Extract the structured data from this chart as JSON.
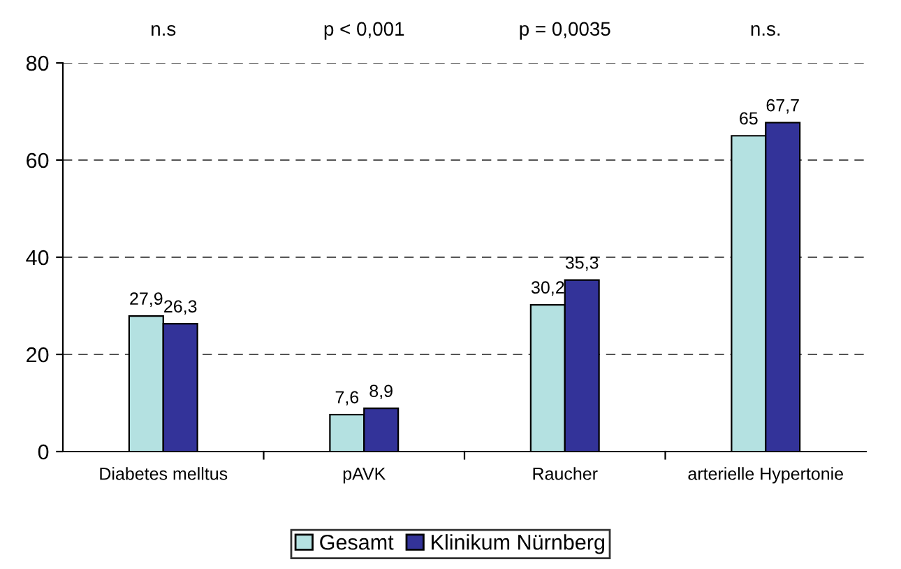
{
  "chart_data": {
    "type": "bar",
    "categories": [
      "Diabetes melltus",
      "pAVK",
      "Raucher",
      "arterielle Hypertonie"
    ],
    "series": [
      {
        "name": "Gesamt",
        "color": "#b4e1e1",
        "values": [
          27.9,
          7.6,
          30.2,
          65
        ],
        "value_labels": [
          "27,9",
          "7,6",
          "30,2",
          "65"
        ]
      },
      {
        "name": "Klinikum Nürnberg",
        "color": "#333399",
        "values": [
          26.3,
          8.9,
          35.3,
          67.7
        ],
        "value_labels": [
          "26,3",
          "8,9",
          "35,3",
          "67,7"
        ]
      }
    ],
    "annotations": [
      "n.s",
      "p < 0,001",
      "p = 0,0035",
      "n.s."
    ],
    "ylim": [
      0,
      80
    ],
    "yticks": [
      0,
      20,
      40,
      60,
      80
    ],
    "grid": "y",
    "legend": "bottom"
  }
}
